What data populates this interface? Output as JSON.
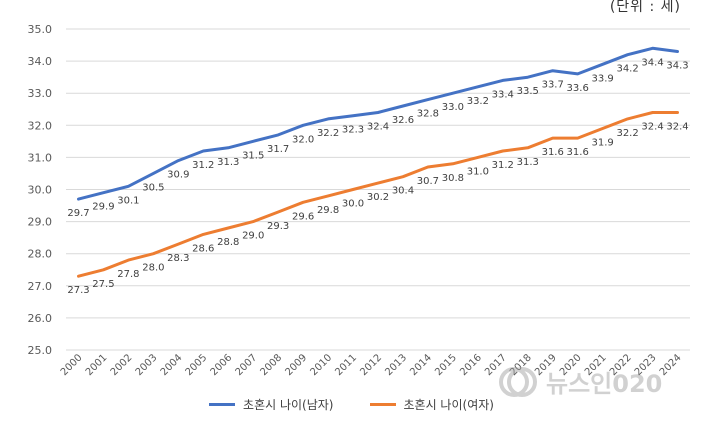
{
  "unit_label": "(단위 : 세)",
  "watermark_text": "뉴스인020",
  "chart_data": {
    "type": "line",
    "categories": [
      "2000",
      "2001",
      "2002",
      "2003",
      "2004",
      "2005",
      "2006",
      "2007",
      "2008",
      "2009",
      "2010",
      "2011",
      "2012",
      "2013",
      "2014",
      "2015",
      "2016",
      "2017",
      "2018",
      "2019",
      "2020",
      "2021",
      "2022",
      "2023",
      "2024"
    ],
    "ylim": [
      25.0,
      35.0
    ],
    "yticks": [
      "25.0",
      "26.0",
      "27.0",
      "28.0",
      "29.0",
      "30.0",
      "31.0",
      "32.0",
      "33.0",
      "34.0",
      "35.0"
    ],
    "grid": true,
    "legend_position": "bottom",
    "series": [
      {
        "name": "초혼시 나이(남자)",
        "color": "#4472C4",
        "values": [
          29.7,
          29.9,
          30.1,
          30.5,
          30.9,
          31.2,
          31.3,
          31.5,
          31.7,
          32.0,
          32.2,
          32.3,
          32.4,
          32.6,
          32.8,
          33.0,
          33.2,
          33.4,
          33.5,
          33.7,
          33.6,
          33.9,
          34.2,
          34.4,
          34.3
        ],
        "labels": [
          "29.7",
          "29.9",
          "30.1",
          "30.5",
          "30.9",
          "31.2",
          "31.3",
          "31.5",
          "31.7",
          "32.0",
          "32.2",
          "32.3",
          "32.4",
          "32.6",
          "32.8",
          "33.0",
          "33.2",
          "33.4",
          "33.5",
          "33.7",
          "33.6",
          "33.9",
          "34.2",
          "34.4",
          "34.3"
        ]
      },
      {
        "name": "초혼시 나이(여자)",
        "color": "#ED7D31",
        "values": [
          27.3,
          27.5,
          27.8,
          28.0,
          28.3,
          28.6,
          28.8,
          29.0,
          29.3,
          29.6,
          29.8,
          30.0,
          30.2,
          30.4,
          30.7,
          30.8,
          31.0,
          31.2,
          31.3,
          31.6,
          31.6,
          31.9,
          32.2,
          32.4,
          32.4
        ],
        "labels": [
          "27.3",
          "27.5",
          "27.8",
          "28.0",
          "28.3",
          "28.6",
          "28.8",
          "29.0",
          "29.3",
          "29.6",
          "29.8",
          "30.0",
          "30.2",
          "30.4",
          "30.7",
          "30.8",
          "31.0",
          "31.2",
          "31.3",
          "31.6",
          "31.6",
          "31.9",
          "32.2",
          "32.4",
          "32.4"
        ]
      }
    ]
  }
}
